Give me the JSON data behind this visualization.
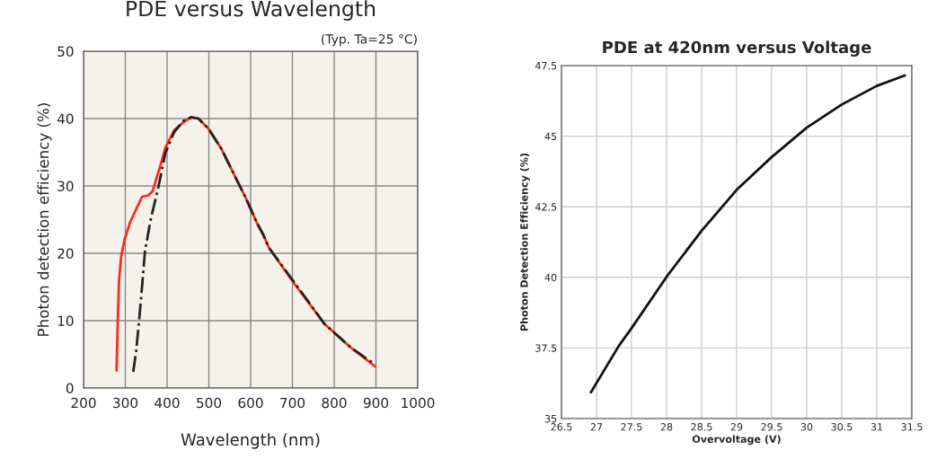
{
  "chart_data": [
    {
      "type": "line",
      "title": "PDE versus Wavelength",
      "xlabel": "Wavelength (nm)",
      "ylabel": "Photon detection efficiency (%)",
      "annotations": [
        "(Typ. Ta=25 °C)"
      ],
      "xlim": [
        200,
        1000
      ],
      "xticks": [
        200,
        300,
        400,
        500,
        600,
        700,
        800,
        900,
        1000
      ],
      "ylim": [
        0,
        50
      ],
      "yticks": [
        0,
        10,
        20,
        30,
        40,
        50
      ],
      "grid": true,
      "legend": false,
      "marker": "none",
      "series": [
        {
          "color": "#222222",
          "line_style": "dashdot",
          "x": [
            319,
            326,
            333,
            340,
            347,
            361,
            378,
            396,
            417,
            440,
            458,
            475,
            499,
            530,
            558,
            590,
            615,
            630,
            644,
            701,
            777,
            840,
            898
          ],
          "values": [
            2.4,
            5.5,
            10,
            15,
            20.3,
            25.1,
            29.5,
            34.9,
            38,
            39.7,
            40.2,
            40,
            38.5,
            35.5,
            32,
            28,
            24.5,
            22.8,
            20.8,
            16,
            9.5,
            6,
            3.5
          ]
        },
        {
          "color": "#ff2a1a",
          "line_style": "solid",
          "x": [
            279,
            282,
            285,
            290,
            298,
            312,
            340,
            355,
            365,
            382,
            396,
            417,
            440,
            458,
            475,
            499,
            530,
            558,
            590,
            615,
            630,
            644,
            701,
            777,
            840,
            898
          ],
          "values": [
            2.6,
            10,
            16,
            19.5,
            22,
            24.7,
            28.4,
            28.6,
            29.2,
            32.6,
            35.7,
            38.3,
            39.5,
            40.2,
            40,
            38.5,
            35.5,
            32,
            28,
            24.5,
            22.8,
            20.8,
            15.8,
            9.5,
            6,
            3.2
          ]
        }
      ]
    },
    {
      "type": "line",
      "title": "PDE at 420nm versus Voltage",
      "xlabel": "Overvoltage (V)",
      "ylabel": "Photon Detection Efficiency (%)",
      "xlim": [
        26.5,
        31.5
      ],
      "xticks": [
        26.5,
        27,
        27.5,
        28,
        28.5,
        29,
        29.5,
        30,
        30.5,
        31,
        31.5
      ],
      "ylim": [
        35,
        47.5
      ],
      "yticks": [
        35,
        37.5,
        40,
        42.5,
        45,
        47.5
      ],
      "grid": true,
      "legend": false,
      "marker": "none",
      "series": [
        {
          "color": "#111111",
          "line_style": "solid",
          "x": [
            26.92,
            27.32,
            27.5,
            28,
            28.5,
            29,
            29.5,
            30,
            30.5,
            31,
            31.4
          ],
          "values": [
            35.93,
            37.58,
            38.2,
            40.02,
            41.65,
            43.1,
            44.26,
            45.3,
            46.12,
            46.78,
            47.15
          ]
        }
      ]
    }
  ]
}
